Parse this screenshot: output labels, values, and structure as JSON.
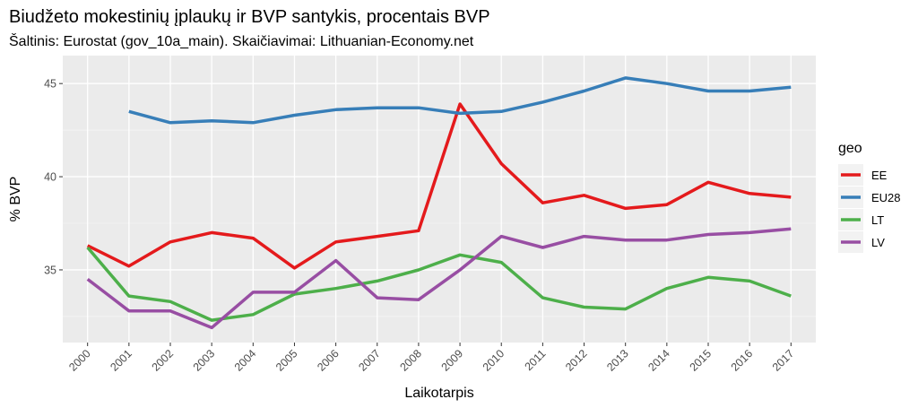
{
  "chart_data": {
    "type": "line",
    "title": "Biudžeto mokestinių įplaukų ir BVP santykis, procentais BVP",
    "subtitle": "Šaltinis: Eurostat (gov_10a_main). Skaičiavimai: Lithuanian-Economy.net",
    "xlabel": "Laikotarpis",
    "ylabel": "% BVP",
    "x": [
      "2000",
      "2001",
      "2002",
      "2003",
      "2004",
      "2005",
      "2006",
      "2007",
      "2008",
      "2009",
      "2010",
      "2011",
      "2012",
      "2013",
      "2014",
      "2015",
      "2016",
      "2017"
    ],
    "yticks": [
      35,
      40,
      45
    ],
    "ylim": [
      31.1,
      46.5
    ],
    "grid": true,
    "legend": {
      "title": "geo",
      "position": "right"
    },
    "series": [
      {
        "name": "EE",
        "color": "#e41a1c",
        "values": [
          36.3,
          35.2,
          36.5,
          37.0,
          36.7,
          35.1,
          36.5,
          36.8,
          37.1,
          43.9,
          40.7,
          38.6,
          39.0,
          38.3,
          38.5,
          39.7,
          39.1,
          38.9
        ]
      },
      {
        "name": "EU28",
        "color": "#377eb8",
        "values": [
          null,
          43.5,
          42.9,
          43.0,
          42.9,
          43.3,
          43.6,
          43.7,
          43.7,
          43.4,
          43.5,
          44.0,
          44.6,
          45.3,
          45.0,
          44.6,
          44.6,
          44.8
        ]
      },
      {
        "name": "LT",
        "color": "#4daf4a",
        "values": [
          36.2,
          33.6,
          33.3,
          32.3,
          32.6,
          33.7,
          34.0,
          34.4,
          35.0,
          35.8,
          35.4,
          33.5,
          33.0,
          32.9,
          34.0,
          34.6,
          34.4,
          33.6
        ]
      },
      {
        "name": "LV",
        "color": "#984ea3",
        "values": [
          34.5,
          32.8,
          32.8,
          31.9,
          33.8,
          33.8,
          35.5,
          33.5,
          33.4,
          35.0,
          36.8,
          36.2,
          36.8,
          36.6,
          36.6,
          36.9,
          37.0,
          37.2
        ]
      }
    ]
  }
}
